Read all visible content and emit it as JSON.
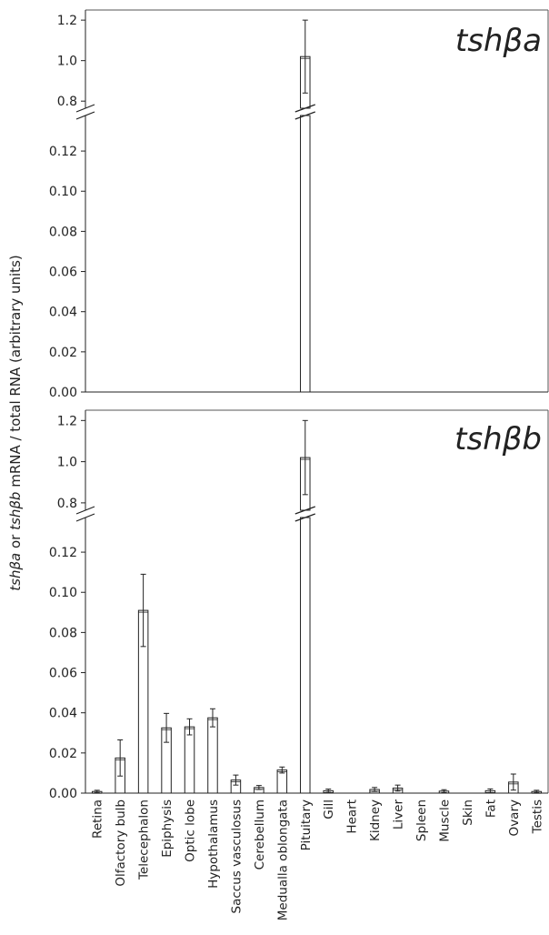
{
  "chart_data": {
    "type": "bar",
    "ylabel": {
      "prefix_gene_a": "tshβa",
      "middle_or": " or ",
      "prefix_gene_b": "tshβb",
      "suffix": " mRNA / total RNA (arbitrary units)"
    },
    "categories": [
      "Retina",
      "Olfactory bulb",
      "Telecephalon",
      "Epiphysis",
      "Optic lobe",
      "Hypothalamus",
      "Saccus vasculosus",
      "Cerebellum",
      "Medualla oblongata",
      "Pituitary",
      "Gill",
      "Heart",
      "Kidney",
      "Liver",
      "Spleen",
      "Muscle",
      "Skin",
      "Fat",
      "Ovary",
      "Testis"
    ],
    "axis": {
      "lower_range": [
        0,
        0.13
      ],
      "upper_range": [
        0.72,
        1.25
      ],
      "axis_break": true,
      "lower_ticks": [
        0.0,
        0.02,
        0.04,
        0.06,
        0.08,
        0.1,
        0.12
      ],
      "upper_ticks": [
        0.8,
        1.0,
        1.2
      ],
      "lower_tick_labels": [
        "0.00",
        "0.02",
        "0.04",
        "0.06",
        "0.08",
        "0.10",
        "0.12"
      ],
      "upper_tick_labels": [
        "0.8",
        "1.0",
        "1.2"
      ]
    },
    "panels": [
      {
        "title": "tshβa",
        "values": [
          0,
          0,
          0,
          0,
          0,
          0,
          0,
          0,
          0,
          1.02,
          0,
          0,
          0,
          0,
          0,
          0,
          0,
          0,
          0,
          0
        ],
        "errors": [
          0,
          0,
          0,
          0,
          0,
          0,
          0,
          0,
          0,
          0.18,
          0,
          0,
          0,
          0,
          0,
          0,
          0,
          0,
          0,
          0
        ]
      },
      {
        "title": "tshβb",
        "values": [
          0.0008,
          0.0175,
          0.091,
          0.0325,
          0.033,
          0.0375,
          0.0065,
          0.0028,
          0.0115,
          1.02,
          0.0012,
          0,
          0.0018,
          0.0025,
          0,
          0.001,
          0,
          0.0012,
          0.0055,
          0.0008
        ],
        "errors": [
          0.0006,
          0.009,
          0.018,
          0.0072,
          0.004,
          0.0045,
          0.0025,
          0.001,
          0.0015,
          0.18,
          0.0008,
          0,
          0.001,
          0.0015,
          0,
          0.0007,
          0,
          0.0009,
          0.004,
          0.0006
        ]
      }
    ]
  }
}
